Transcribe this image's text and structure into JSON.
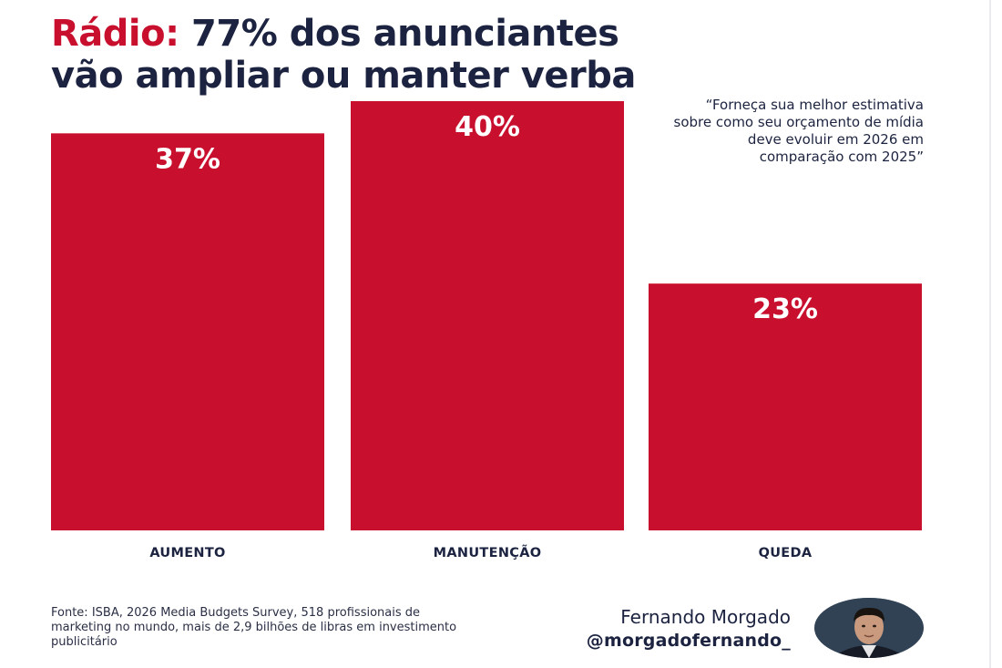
{
  "title": {
    "highlight": "Rádio:",
    "rest_line1": " 77% dos anunciantes",
    "line2": "vão ampliar ou manter verba"
  },
  "quote": "“Forneça sua melhor estimativa sobre como seu orçamento de mídia deve evoluir em 2026 em comparação com 2025”",
  "chart_data": {
    "type": "bar",
    "title": "Rádio: 77% dos anunciantes vão ampliar ou manter verba",
    "categories": [
      "AUMENTO",
      "MANUTENÇÃO",
      "QUEDA"
    ],
    "values": [
      37,
      40,
      23
    ],
    "value_labels": [
      "37%",
      "40%",
      "23%"
    ],
    "unit": "%",
    "xlabel": "",
    "ylabel": "",
    "ylim": [
      0,
      40
    ],
    "grid": false,
    "legend": "none",
    "bar_color": "#c8102e"
  },
  "source": "Fonte: ISBA, 2026 Media Budgets Survey, 518 profissionais de marketing no mundo, mais de 2,9 bilhões de libras em investimento publicitário",
  "author": {
    "name": "Fernando Morgado",
    "handle": "@morgadofernando_"
  },
  "colors": {
    "accent": "#c8102e",
    "text": "#1c2340",
    "background": "#ffffff"
  }
}
